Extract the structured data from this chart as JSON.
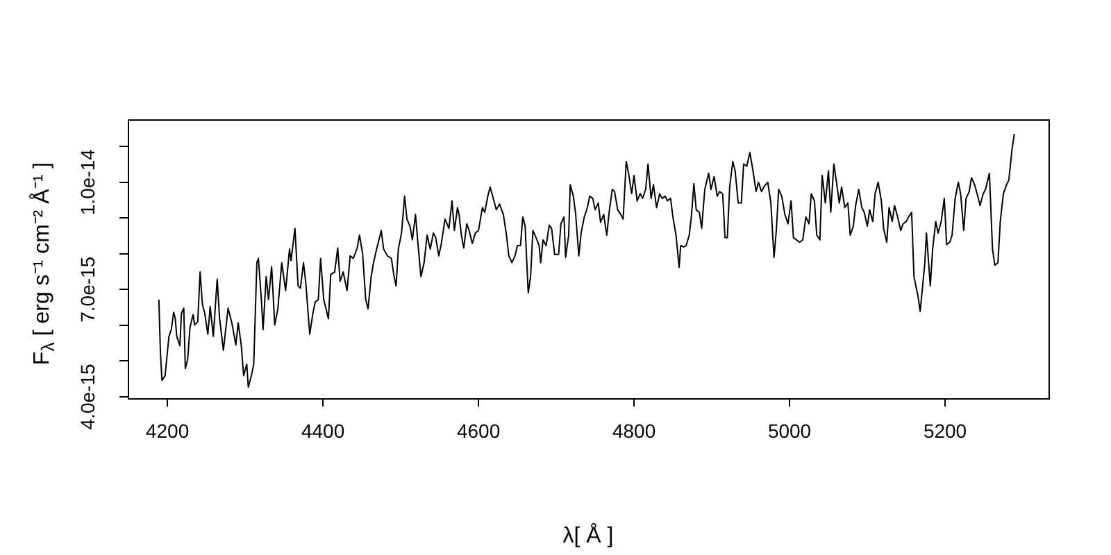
{
  "chart_data": {
    "type": "line",
    "xlabel": "λ[ Å ]",
    "ylabel": "F$_{λ}$ [ erg s⁻¹ cm⁻² Å⁻¹ ]",
    "x": [
      4189,
      4191,
      4193,
      4197,
      4199,
      4202,
      4205,
      4208,
      4210,
      4212,
      4216,
      4218,
      4221,
      4223,
      4226,
      4229,
      4233,
      4235,
      4239,
      4242,
      4245,
      4248,
      4252,
      4255,
      4259,
      4264,
      4267,
      4272,
      4278,
      4283,
      4288,
      4291,
      4295,
      4298,
      4302,
      4304,
      4308,
      4311,
      4315,
      4317,
      4321,
      4323,
      4327,
      4330,
      4334,
      4338,
      4342,
      4347,
      4352,
      4357,
      4359,
      4364,
      4368,
      4371,
      4375,
      4378,
      4383,
      4387,
      4390,
      4394,
      4397,
      4401,
      4407,
      4410,
      4415,
      4419,
      4422,
      4426,
      4431,
      4435,
      4439,
      4444,
      4447,
      4451,
      4455,
      4458,
      4462,
      4465,
      4469,
      4472,
      4475,
      4478,
      4483,
      4488,
      4491,
      4494,
      4497,
      4501,
      4505,
      4508,
      4512,
      4515,
      4519,
      4522,
      4526,
      4530,
      4534,
      4538,
      4542,
      4545,
      4549,
      4552,
      4557,
      4562,
      4566,
      4569,
      4573,
      4575,
      4578,
      4581,
      4585,
      4588,
      4592,
      4596,
      4600,
      4605,
      4608,
      4612,
      4615,
      4619,
      4623,
      4627,
      4632,
      4636,
      4639,
      4643,
      4647,
      4650,
      4654,
      4657,
      4660,
      4662,
      4664,
      4667,
      4670,
      4674,
      4678,
      4680,
      4683,
      4687,
      4691,
      4694,
      4698,
      4703,
      4706,
      4710,
      4712,
      4716,
      4718,
      4722,
      4725,
      4729,
      4732,
      4736,
      4740,
      4743,
      4747,
      4750,
      4754,
      4757,
      4761,
      4765,
      4768,
      4772,
      4775,
      4779,
      4783,
      4786,
      4790,
      4793,
      4797,
      4800,
      4804,
      4808,
      4811,
      4815,
      4818,
      4822,
      4825,
      4829,
      4833,
      4836,
      4840,
      4843,
      4847,
      4850,
      4854,
      4858,
      4860,
      4864,
      4867,
      4871,
      4874,
      4877,
      4880,
      4884,
      4887,
      4891,
      4896,
      4899,
      4903,
      4907,
      4910,
      4914,
      4917,
      4920,
      4923,
      4927,
      4930,
      4934,
      4938,
      4941,
      4945,
      4949,
      4953,
      4957,
      4960,
      4964,
      4967,
      4972,
      4976,
      4978,
      4980,
      4983,
      4986,
      4990,
      4994,
      4998,
      5002,
      5005,
      5009,
      5013,
      5017,
      5021,
      5025,
      5028,
      5032,
      5035,
      5039,
      5042,
      5046,
      5050,
      5053,
      5057,
      5060,
      5064,
      5067,
      5071,
      5075,
      5078,
      5082,
      5085,
      5089,
      5093,
      5096,
      5100,
      5103,
      5107,
      5110,
      5114,
      5118,
      5121,
      5125,
      5128,
      5132,
      5135,
      5139,
      5143,
      5146,
      5150,
      5153,
      5157,
      5160,
      5163,
      5165,
      5168,
      5170,
      5174,
      5176,
      5178,
      5181,
      5184,
      5188,
      5191,
      5195,
      5199,
      5202,
      5206,
      5209,
      5213,
      5217,
      5220,
      5224,
      5227,
      5231,
      5234,
      5238,
      5242,
      5245,
      5249,
      5252,
      5257,
      5261,
      5264,
      5268,
      5271,
      5275,
      5279,
      5282,
      5286,
      5289
    ],
    "series": [
      {
        "color": "#000000",
        "values": [
          6.72e-15,
          5.24e-15,
          4.46e-15,
          4.59e-15,
          5.04e-15,
          5.69e-15,
          5.88e-15,
          6.36e-15,
          6.2e-15,
          5.69e-15,
          5.43e-15,
          6.33e-15,
          6.48e-15,
          4.79e-15,
          5.04e-15,
          5.94e-15,
          6.3e-15,
          6.01e-15,
          6.1e-15,
          7.49e-15,
          6.59e-15,
          6.33e-15,
          5.75e-15,
          6.52e-15,
          5.69e-15,
          7.29e-15,
          6.2e-15,
          5.3e-15,
          6.48e-15,
          6.05e-15,
          5.45e-15,
          6.07e-15,
          5.43e-15,
          4.59e-15,
          4.91e-15,
          4.27e-15,
          4.59e-15,
          4.91e-15,
          7.75e-15,
          7.87e-15,
          6.65e-15,
          5.88e-15,
          7.36e-15,
          6.72e-15,
          7.64e-15,
          6.01e-15,
          6.46e-15,
          7.75e-15,
          6.97e-15,
          8.13e-15,
          7.81e-15,
          8.71e-15,
          7.1e-15,
          7.04e-15,
          7.75e-15,
          7.17e-15,
          5.75e-15,
          6.33e-15,
          6.65e-15,
          6.72e-15,
          7.87e-15,
          6.72e-15,
          6.18e-15,
          7.42e-15,
          7.49e-15,
          8.16e-15,
          7.23e-15,
          7.49e-15,
          6.97e-15,
          7.94e-15,
          7.87e-15,
          8.16e-15,
          8.52e-15,
          8e-15,
          6.72e-15,
          6.46e-15,
          7.36e-15,
          7.75e-15,
          8.13e-15,
          8.39e-15,
          8.65e-15,
          8.13e-15,
          7.94e-15,
          7.87e-15,
          7.42e-15,
          7.1e-15,
          8.13e-15,
          8.58e-15,
          9.61e-15,
          8.97e-15,
          8.77e-15,
          8.39e-15,
          9.1e-15,
          8.32e-15,
          7.36e-15,
          7.75e-15,
          8.52e-15,
          8.13e-15,
          8.58e-15,
          8.45e-15,
          7.94e-15,
          8.26e-15,
          8.97e-15,
          8.71e-15,
          9.48e-15,
          8.65e-15,
          9.29e-15,
          9.1e-15,
          8.52e-15,
          8.16e-15,
          8.84e-15,
          8.65e-15,
          8.29e-15,
          8.58e-15,
          8.65e-15,
          9.29e-15,
          9.16e-15,
          9.61e-15,
          9.87e-15,
          9.55e-15,
          9.23e-15,
          9.39e-15,
          9.1e-15,
          8.52e-15,
          7.94e-15,
          7.75e-15,
          7.94e-15,
          8.23e-15,
          8.23e-15,
          9.03e-15,
          8.77e-15,
          7.81e-15,
          6.91e-15,
          7.36e-15,
          8.65e-15,
          8.45e-15,
          8.23e-15,
          7.75e-15,
          8.39e-15,
          8.23e-15,
          8.8e-15,
          8.71e-15,
          7.98e-15,
          7.98e-15,
          8.84e-15,
          9.03e-15,
          7.9e-15,
          8.52e-15,
          9.93e-15,
          9.61e-15,
          9.1e-15,
          7.94e-15,
          8.58e-15,
          9.03e-15,
          9.29e-15,
          9.61e-15,
          9.55e-15,
          9.23e-15,
          9.42e-15,
          8.88e-15,
          9.1e-15,
          8.52e-15,
          9.16e-15,
          9.8e-15,
          9.74e-15,
          9.23e-15,
          9.1e-15,
          8.97e-15,
          1.058e-14,
          1.025e-14,
          9.68e-15,
          1.019e-14,
          9.48e-15,
          9.68e-15,
          9.55e-15,
          9.8e-15,
          1.051e-14,
          9.55e-15,
          9.93e-15,
          9.29e-15,
          9.68e-15,
          9.55e-15,
          9.61e-15,
          9.48e-15,
          9.55e-15,
          9.03e-15,
          8.52e-15,
          7.62e-15,
          8.23e-15,
          8.19e-15,
          8.23e-15,
          8.52e-15,
          9.1e-15,
          9.96e-15,
          9.23e-15,
          9.16e-15,
          8.71e-15,
          9.8e-15,
          1.025e-14,
          9.8e-15,
          1.016e-14,
          9.61e-15,
          9.74e-15,
          9.68e-15,
          8.45e-15,
          8.45e-15,
          9.87e-15,
          1.058e-14,
          1.032e-14,
          9.42e-15,
          9.42e-15,
          1.051e-14,
          1.045e-14,
          1.083e-14,
          1.032e-14,
          9.74e-15,
          1e-14,
          9.74e-15,
          9.87e-15,
          1e-14,
          9.42e-15,
          8.65e-15,
          7.9e-15,
          8.65e-15,
          9.8e-15,
          9.61e-15,
          9.1e-15,
          8.84e-15,
          9.48e-15,
          8.45e-15,
          8.39e-15,
          8.32e-15,
          8.39e-15,
          9.03e-15,
          8.84e-15,
          9.68e-15,
          9.48e-15,
          8.52e-15,
          8.39e-15,
          1.019e-14,
          9.42e-15,
          1.032e-14,
          9.16e-15,
          1.051e-14,
          1.006e-14,
          9.42e-15,
          9.87e-15,
          9.29e-15,
          9.42e-15,
          8.52e-15,
          8.77e-15,
          9.35e-15,
          9.8e-15,
          9.29e-15,
          9.16e-15,
          8.77e-15,
          9.23e-15,
          8.9e-15,
          9.68e-15,
          1e-14,
          9.48e-15,
          8.71e-15,
          8.32e-15,
          9.29e-15,
          8.9e-15,
          9.35e-15,
          9.03e-15,
          8.65e-15,
          8.84e-15,
          8.9e-15,
          9.03e-15,
          9.16e-15,
          7.36e-15,
          7.04e-15,
          6.84e-15,
          6.39e-15,
          6.84e-15,
          7.75e-15,
          8.58e-15,
          8e-15,
          7.1e-15,
          8.13e-15,
          8.9e-15,
          8.58e-15,
          8.9e-15,
          9.55e-15,
          8.26e-15,
          8.32e-15,
          8.52e-15,
          9.55e-15,
          1e-14,
          9.68e-15,
          8.65e-15,
          9.55e-15,
          9.74e-15,
          1.013e-14,
          9.93e-15,
          9.61e-15,
          9.35e-15,
          9.68e-15,
          9.8e-15,
          1.025e-14,
          8.13e-15,
          7.68e-15,
          7.75e-15,
          8.9e-15,
          9.68e-15,
          9.93e-15,
          1.006e-14,
          1.09e-14,
          1.135e-14
        ]
      }
    ],
    "xlim": [
      4149,
      5333
    ],
    "xticks": [
      4200,
      4400,
      4600,
      4800,
      5000,
      5200
    ],
    "ylim": [
      3.96e-15,
      1.176e-14
    ],
    "yticks": [
      {
        "value": 4e-15,
        "label": "4.0e-15"
      },
      {
        "value": 5e-15,
        "label": null
      },
      {
        "value": 6e-15,
        "label": null
      },
      {
        "value": 7e-15,
        "label": "7.0e-15"
      },
      {
        "value": 8e-15,
        "label": null
      },
      {
        "value": 9e-15,
        "label": null
      },
      {
        "value": 1e-14,
        "label": "1.0e-14"
      },
      {
        "value": 1.1e-14,
        "label": null
      }
    ]
  }
}
